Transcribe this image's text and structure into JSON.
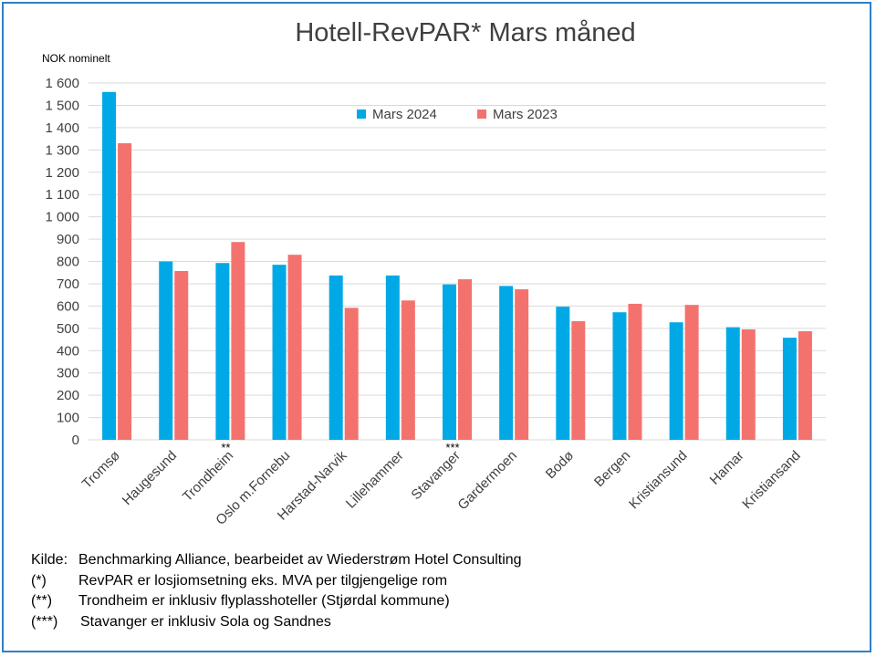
{
  "chart_data": {
    "type": "bar",
    "title": "Hotell-RevPAR* Mars måned",
    "ylabel": "NOK nominelt",
    "ylim": [
      0,
      1600
    ],
    "yticks": [
      0,
      100,
      200,
      300,
      400,
      500,
      600,
      700,
      800,
      900,
      1000,
      1100,
      1200,
      1300,
      1400,
      1500,
      1600
    ],
    "ytick_labels": [
      "0",
      "100",
      "200",
      "300",
      "400",
      "500",
      "600",
      "700",
      "800",
      "900",
      "1 000",
      "1 100",
      "1 200",
      "1 300",
      "1 400",
      "1 500",
      "1 600"
    ],
    "grid": true,
    "legend_position": "top-center",
    "categories": [
      "Tromsø",
      "Haugesund",
      "Trondheim",
      "Oslo m.Fornebu",
      "Harstad-Narvik",
      "Lillehammer",
      "Stavanger",
      "Gardermoen",
      "Bodø",
      "Bergen",
      "Kristiansund",
      "Hamar",
      "Kristiansand"
    ],
    "category_marks": [
      "",
      "",
      "**",
      "",
      "",
      "",
      "***",
      "",
      "",
      "",
      "",
      "",
      ""
    ],
    "series": [
      {
        "name": "Mars 2024",
        "color": "#00a9e6",
        "values": [
          1560,
          800,
          793,
          785,
          737,
          737,
          697,
          690,
          597,
          572,
          527,
          505,
          458
        ]
      },
      {
        "name": "Mars 2023",
        "color": "#f4726e",
        "values": [
          1330,
          757,
          887,
          830,
          592,
          625,
          720,
          675,
          532,
          610,
          605,
          495,
          487
        ]
      }
    ]
  },
  "footnotes": [
    {
      "key": "Kilde:",
      "text": "Benchmarking Alliance, bearbeidet av Wiederstrøm Hotel Consulting"
    },
    {
      "key": "(*)",
      "text": "RevPAR er losjiomsetning eks. MVA per tilgjengelige rom"
    },
    {
      "key": "(**)",
      "text": "Trondheim er inklusiv flyplasshoteller (Stjørdal kommune)"
    },
    {
      "key": "(***)",
      "text": "Stavanger er inklusiv Sola og Sandnes"
    }
  ],
  "colors": {
    "frame": "#2f80c8",
    "grid": "#d9d9d9"
  }
}
